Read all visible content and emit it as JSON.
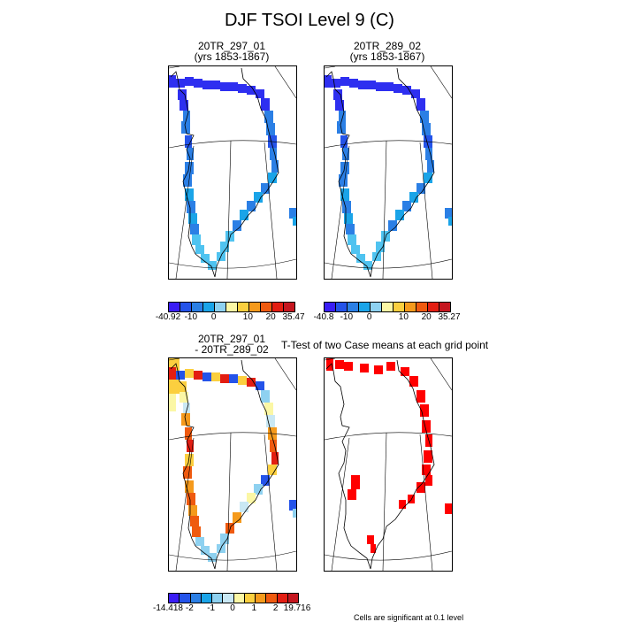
{
  "title": "DJF TSOI Level 9 (C)",
  "chart_data": [
    {
      "type": "heatmap",
      "id": "p1",
      "title_line1": "20TR_297_01",
      "title_line2": "(yrs 1853-1867)",
      "colorbar": {
        "colors": [
          "#3a1df5",
          "#2453e9",
          "#2b7fe5",
          "#1aa4e8",
          "#8ed1f0",
          "#fbf7a5",
          "#fbcf3f",
          "#f59a1c",
          "#ef5a0f",
          "#e31e12",
          "#c5161f"
        ],
        "labels": [
          "-40.92",
          "-10",
          "0",
          "10",
          "20",
          "35.47"
        ]
      }
    },
    {
      "type": "heatmap",
      "id": "p2",
      "title_line1": "20TR_289_02",
      "title_line2": "(yrs 1853-1867)",
      "colorbar": {
        "colors": [
          "#3a1df5",
          "#2453e9",
          "#2b7fe5",
          "#1aa4e8",
          "#8ed1f0",
          "#fbf7a5",
          "#fbcf3f",
          "#f59a1c",
          "#ef5a0f",
          "#e31e12",
          "#c5161f"
        ],
        "labels": [
          "-40.8",
          "-10",
          "0",
          "10",
          "20",
          "35.27"
        ]
      }
    },
    {
      "type": "heatmap",
      "id": "p3",
      "title_line1": "20TR_297_01",
      "title_line2": "- 20TR_289_02",
      "colorbar": {
        "colors": [
          "#3a1df5",
          "#2453e9",
          "#2b7fe5",
          "#1aa4e8",
          "#8ed1f0",
          "#c9e8f4",
          "#fbf7a5",
          "#fbcf3f",
          "#f59a1c",
          "#ef5a0f",
          "#e31e12",
          "#c5161f"
        ],
        "labels": [
          "-14.418",
          "-2",
          "-1",
          "0",
          "1",
          "2",
          "19.716"
        ]
      }
    },
    {
      "type": "heatmap",
      "id": "p4",
      "title": "T-Test of two Case means at each grid point",
      "note": "Cells are significant at 0.1 level",
      "significant_color": "#ff0000"
    }
  ]
}
